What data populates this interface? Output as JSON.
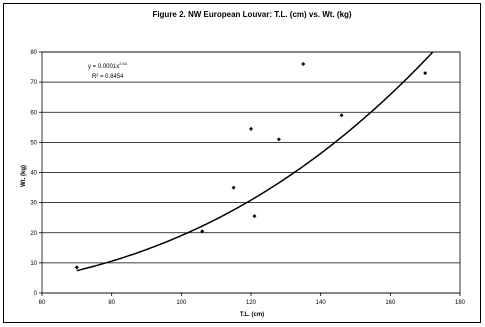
{
  "chart_data": {
    "type": "scatter",
    "title": "Figure 2. NW European Louvar: T.L. (cm) vs. Wt. (kg)",
    "xlabel": "T.L. (cm)",
    "ylabel": "Wt. (kg)",
    "xlim": [
      60,
      180
    ],
    "ylim": [
      0,
      80
    ],
    "x_ticks": [
      60,
      80,
      100,
      120,
      140,
      160,
      180
    ],
    "y_ticks": [
      0,
      10,
      20,
      30,
      40,
      50,
      60,
      70,
      80
    ],
    "grid": "horizontal",
    "points": [
      {
        "x": 70,
        "y": 8.5
      },
      {
        "x": 106,
        "y": 20.5
      },
      {
        "x": 115,
        "y": 35
      },
      {
        "x": 120,
        "y": 54.5
      },
      {
        "x": 121,
        "y": 25.5
      },
      {
        "x": 128,
        "y": 51
      },
      {
        "x": 135,
        "y": 76
      },
      {
        "x": 146,
        "y": 59
      },
      {
        "x": 170,
        "y": 73
      }
    ],
    "trendline": {
      "type": "power",
      "coefficient": 0.0001,
      "exponent": 2.64,
      "equation_base": "y = 0.0001x",
      "equation_exponent": "2.64",
      "r_squared_label": "R² = 0.8454"
    },
    "colors": {
      "points": "#000000",
      "trendline": "#000000",
      "grid": "#000000",
      "plot_background": "#ffffff"
    }
  }
}
